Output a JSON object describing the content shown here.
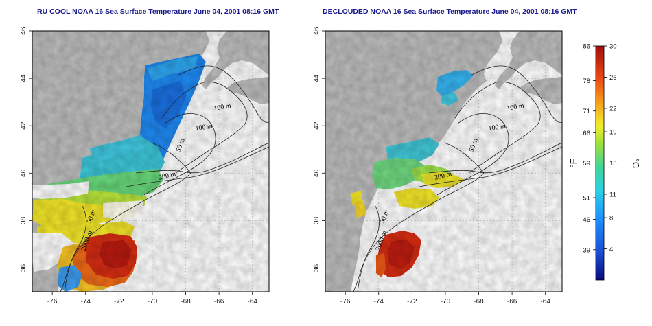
{
  "panels": [
    {
      "id": "left",
      "title": "RU COOL NOAA 16 Sea Surface Temperature June 04, 2001 08:16 GMT",
      "contour_labels": [
        "100 m",
        "100 m",
        "50 m",
        "200 m",
        "50 m",
        "2000 m"
      ]
    },
    {
      "id": "right",
      "title": "DECLOUDED NOAA 16 Sea Surface Temperature June 04, 2001 08:16 GMT",
      "contour_labels": [
        "100 m",
        "100 m",
        "50 m",
        "200 m",
        "50 m",
        "2000 m"
      ]
    }
  ],
  "axes": {
    "x_ticks": [
      "-76",
      "-74",
      "-72",
      "-70",
      "-68",
      "-66",
      "-64"
    ],
    "y_ticks": [
      "36",
      "38",
      "40",
      "42",
      "44",
      "46"
    ],
    "x_range": [
      -77.2,
      -63.0
    ],
    "y_range": [
      35.0,
      46.0
    ]
  },
  "colorbar": {
    "fahrenheit_ticks": [
      "86",
      "78",
      "71",
      "66",
      "59",
      "51",
      "46",
      "39"
    ],
    "celsius_ticks": [
      "30",
      "26",
      "22",
      "19",
      "15",
      "11",
      "8",
      "4"
    ],
    "fahrenheit_unit": "°F",
    "celsius_unit": "°C",
    "range_c": [
      0,
      30
    ]
  },
  "colors": {
    "land": "#bdbdbd",
    "title": "#1a1a8c",
    "grid": "#c8c8c8"
  }
}
